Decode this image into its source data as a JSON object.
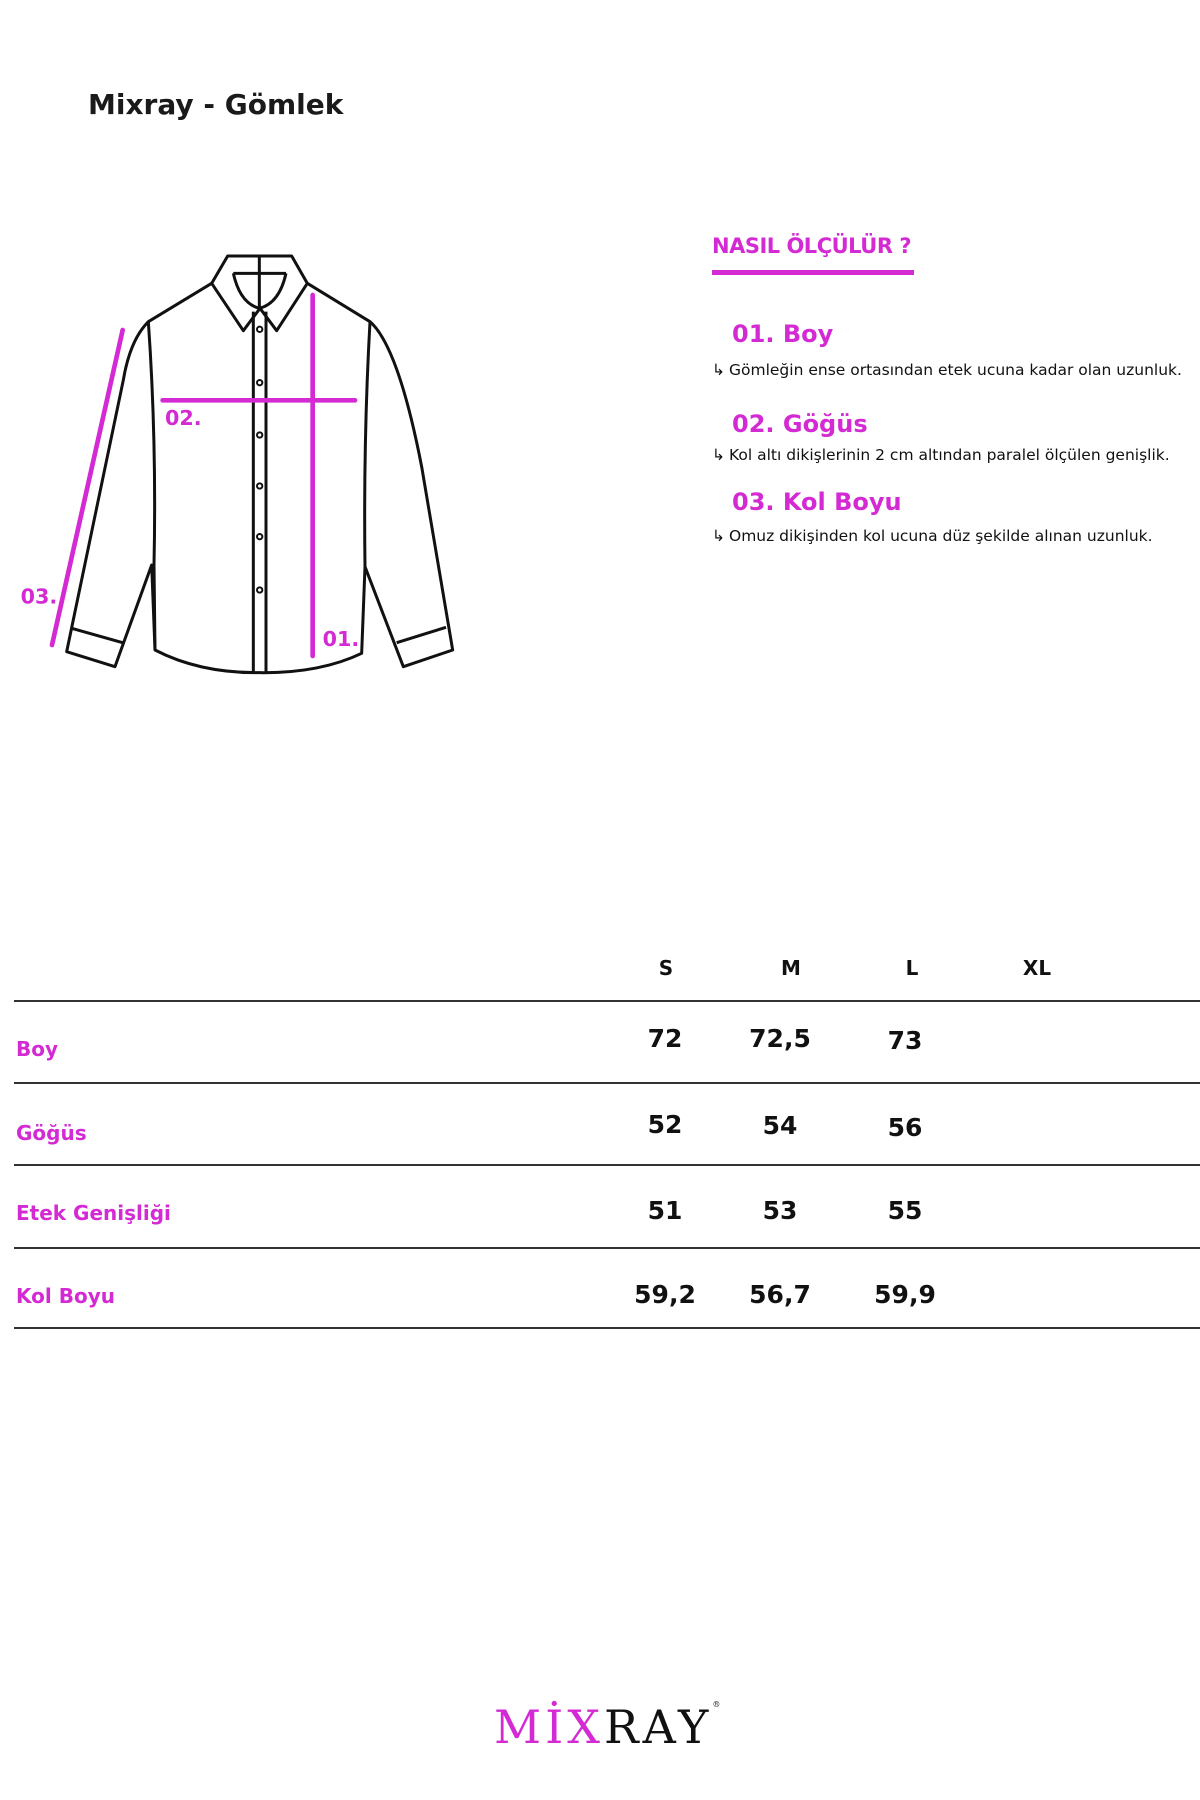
{
  "title": "Mixray - Gömlek",
  "accent_color": "#d42ad4",
  "how_to": {
    "heading": "NASIL ÖLÇÜLÜR ?",
    "arrow_icon": "↳",
    "steps": [
      {
        "label": "01. Boy",
        "desc": "Gömleğin ense ortasından etek ucuna kadar olan uzunluk."
      },
      {
        "label": "02. Göğüs",
        "desc": "Kol altı dikişlerinin 2 cm altından paralel ölçülen genişlik."
      },
      {
        "label": "03. Kol Boyu",
        "desc": "Omuz dikişinden kol ucuna düz şekilde alınan uzunluk."
      }
    ]
  },
  "diagram": {
    "label_01": "01.",
    "label_02": "02.",
    "label_03": "03."
  },
  "table": {
    "columns": [
      "S",
      "M",
      "L",
      "XL"
    ],
    "rows": [
      {
        "label": "Boy",
        "values": [
          "72",
          "72,5",
          "73",
          ""
        ]
      },
      {
        "label": "Göğüs",
        "values": [
          "52",
          "54",
          "56",
          ""
        ]
      },
      {
        "label": "Etek Genişliği",
        "values": [
          "51",
          "53",
          "55",
          ""
        ]
      },
      {
        "label": "Kol Boyu",
        "values": [
          "59,2",
          "56,7",
          "59,9",
          ""
        ]
      }
    ]
  },
  "logo": {
    "part1": "MİX",
    "part2": "RAY",
    "mark": "®"
  }
}
